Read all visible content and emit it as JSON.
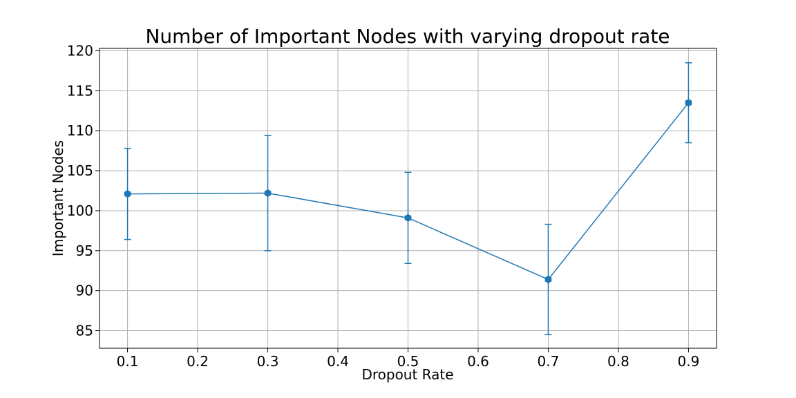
{
  "chart_data": {
    "type": "line",
    "title": "Number of Important Nodes with varying dropout rate",
    "xlabel": "Dropout Rate",
    "ylabel": "Important Nodes",
    "x": [
      0.1,
      0.3,
      0.5,
      0.7,
      0.9
    ],
    "series": [
      {
        "values": [
          102.1,
          102.2,
          99.1,
          91.4,
          113.5
        ],
        "error": [
          5.7,
          7.2,
          5.7,
          6.9,
          5.0
        ],
        "color": "#1f77b4",
        "marker": "hexagon"
      }
    ],
    "xlim": [
      0.06,
      0.94
    ],
    "ylim": [
      82.8,
      120.3
    ],
    "xticks": [
      0.1,
      0.2,
      0.3,
      0.4,
      0.5,
      0.6,
      0.7,
      0.8,
      0.9
    ],
    "xtick_labels": [
      "0.1",
      "0.2",
      "0.3",
      "0.4",
      "0.5",
      "0.6",
      "0.7",
      "0.8",
      "0.9"
    ],
    "yticks": [
      85,
      90,
      95,
      100,
      105,
      110,
      115,
      120
    ],
    "ytick_labels": [
      "85",
      "90",
      "95",
      "100",
      "105",
      "110",
      "115",
      "120"
    ],
    "grid": true,
    "legend": false
  }
}
